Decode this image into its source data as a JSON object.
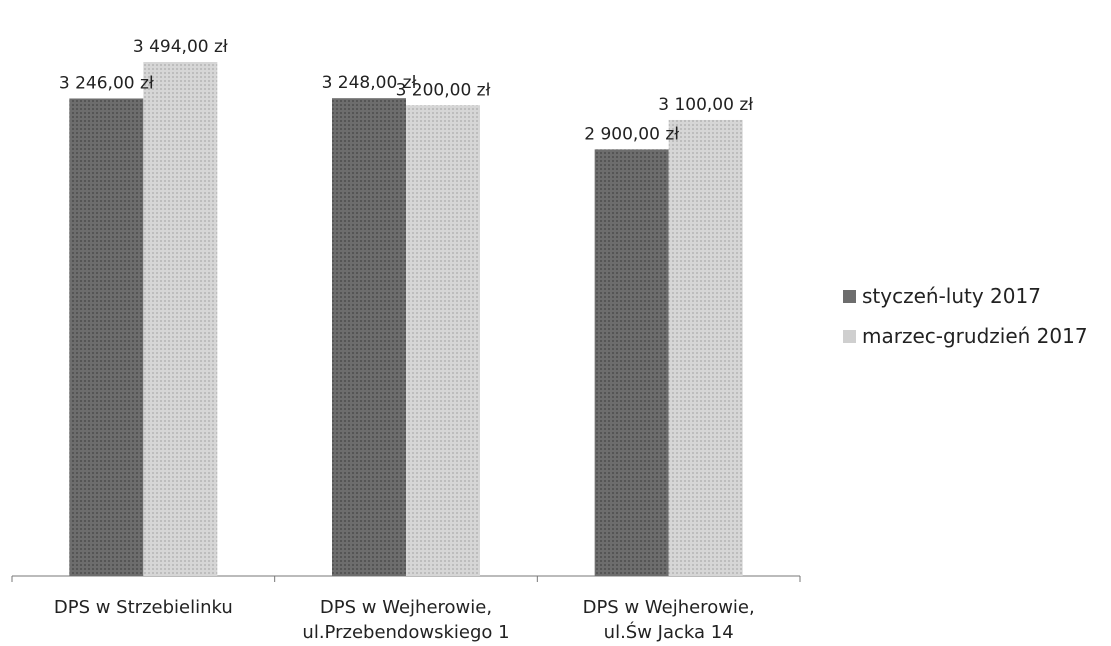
{
  "chart_data": {
    "type": "bar",
    "categories": [
      [
        "DPS w Strzebielinku"
      ],
      [
        "DPS w Wejherowie,",
        "ul.Przebendowskiego 1"
      ],
      [
        "DPS w Wejherowie,",
        "ul.Św Jacka 14"
      ]
    ],
    "series": [
      {
        "name": "styczeń-luty 2017",
        "values": [
          3246,
          3248,
          2900
        ],
        "labels": [
          "3 246,00 zł",
          "3 248,00 zł",
          "2 900,00 zł"
        ],
        "color": "#6d6d6d"
      },
      {
        "name": "marzec-grudzień 2017",
        "values": [
          3494,
          3200,
          3100
        ],
        "labels": [
          "3 494,00 zł",
          "3 200,00 zł",
          "3 100,00 zł"
        ],
        "color": "#cfcfcf"
      }
    ],
    "ylim": [
      0,
      3494
    ],
    "legend_position": "right",
    "grid": false
  }
}
